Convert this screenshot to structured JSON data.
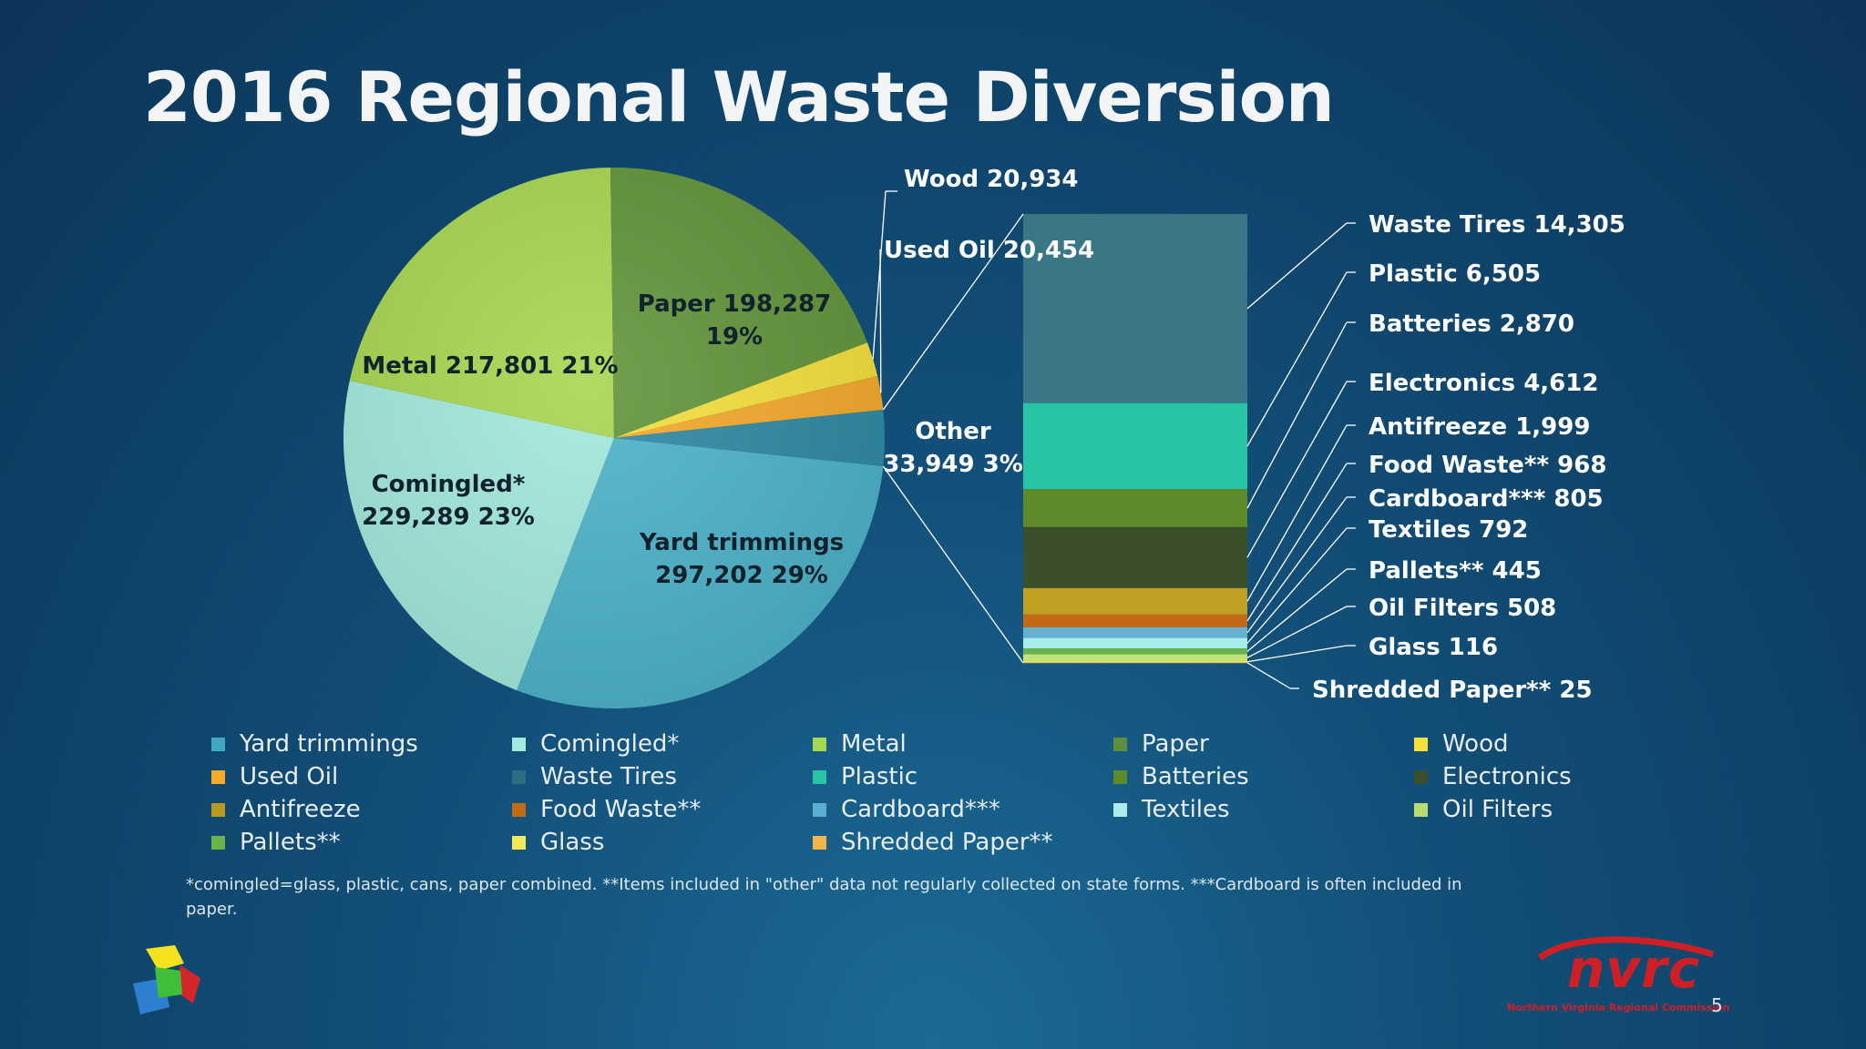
{
  "slide": {
    "title": "2016 Regional Waste Diversion",
    "footnote": "*comingled=glass, plastic, cans, paper combined. **Items included in \"other\" data not regularly collected on state forms. ***Cardboard is often included in paper.",
    "page_number": "5"
  },
  "logos": {
    "right_name": "nvrc",
    "right_subtitle": "Northern Virginia Regional Commission"
  },
  "chart_data": {
    "type": "pie",
    "subtype": "bar-of-pie",
    "pie": [
      {
        "name": "Yard trimmings",
        "value": 297202,
        "percent": "29%",
        "label_lines": [
          "Yard trimmings",
          "297,202  29%"
        ],
        "color": "#4db3c9"
      },
      {
        "name": "Comingled*",
        "value": 229289,
        "percent": "23%",
        "label_lines": [
          "Comingled*",
          "229,289  23%"
        ],
        "color": "#a3e9dc"
      },
      {
        "name": "Metal",
        "value": 217801,
        "percent": "21%",
        "label_lines": [
          "Metal   217,801  21%"
        ],
        "color": "#a9d651"
      },
      {
        "name": "Paper",
        "value": 198287,
        "percent": "19%",
        "label_lines": [
          "Paper   198,287",
          "19%"
        ],
        "color": "#62953b"
      },
      {
        "name": "Wood",
        "value": 20934,
        "label_lines": [
          "Wood   20,934"
        ],
        "color": "#f5e03c"
      },
      {
        "name": "Used Oil",
        "value": 20454,
        "label_lines": [
          "Used Oil   20,454"
        ],
        "color": "#f6aa2a"
      },
      {
        "name": "Other",
        "value": 33949,
        "percent": "3%",
        "label_lines": [
          "Other",
          "33,949  3%"
        ],
        "color": "#2f8aa2"
      }
    ],
    "other_breakdown": [
      {
        "name": "Waste Tires",
        "value": 14305,
        "label": "Waste Tires   14,305",
        "color": "#2d6f80"
      },
      {
        "name": "Plastic",
        "value": 6505,
        "label": "Plastic   6,505",
        "color": "#26c4a2"
      },
      {
        "name": "Batteries",
        "value": 2870,
        "label": "Batteries   2,870",
        "color": "#5e8a2a"
      },
      {
        "name": "Electronics",
        "value": 4612,
        "label": "Electronics   4,612",
        "color": "#3b4f2a"
      },
      {
        "name": "Antifreeze",
        "value": 1999,
        "label": "Antifreeze   1,999",
        "color": "#c0a020"
      },
      {
        "name": "Food Waste**",
        "value": 968,
        "label": "Food Waste**   968",
        "color": "#c46a16"
      },
      {
        "name": "Cardboard***",
        "value": 805,
        "label": "Cardboard***   805",
        "color": "#66b0d0"
      },
      {
        "name": "Textiles",
        "value": 792,
        "label": "Textiles   792",
        "color": "#a8ecec"
      },
      {
        "name": "Pallets**",
        "value": 445,
        "label": "Pallets**   445",
        "color": "#6ab34a"
      },
      {
        "name": "Oil Filters",
        "value": 508,
        "label": "Oil Filters   508",
        "color": "#c2e27a"
      },
      {
        "name": "Glass",
        "value": 116,
        "label": "Glass   116",
        "color": "#f2e85a"
      },
      {
        "name": "Shredded Paper**",
        "value": 25,
        "label": "Shredded Paper**   25",
        "color": "#f5b44a"
      }
    ],
    "legend": [
      {
        "name": "Yard trimmings",
        "color": "#41a8c4"
      },
      {
        "name": "Comingled*",
        "color": "#a3e9dc"
      },
      {
        "name": "Metal",
        "color": "#a9d651"
      },
      {
        "name": "Paper",
        "color": "#5f8f3c"
      },
      {
        "name": "Wood",
        "color": "#f5e03c"
      },
      {
        "name": "Used Oil",
        "color": "#f6aa2a"
      },
      {
        "name": "Waste Tires",
        "color": "#2d6f80"
      },
      {
        "name": "Plastic",
        "color": "#26c4a2"
      },
      {
        "name": "Batteries",
        "color": "#5e8a2a"
      },
      {
        "name": "Electronics",
        "color": "#3b4f2a"
      },
      {
        "name": "Antifreeze",
        "color": "#b89a20"
      },
      {
        "name": "Food Waste**",
        "color": "#c46a16"
      },
      {
        "name": "Cardboard***",
        "color": "#5aaed0"
      },
      {
        "name": "Textiles",
        "color": "#a8ecec"
      },
      {
        "name": "Oil Filters",
        "color": "#b8dc70"
      },
      {
        "name": "Pallets**",
        "color": "#6ab34a"
      },
      {
        "name": "Glass",
        "color": "#f2e85a"
      },
      {
        "name": "Shredded Paper**",
        "color": "#f5b44a"
      }
    ],
    "legend_position": "bottom"
  }
}
